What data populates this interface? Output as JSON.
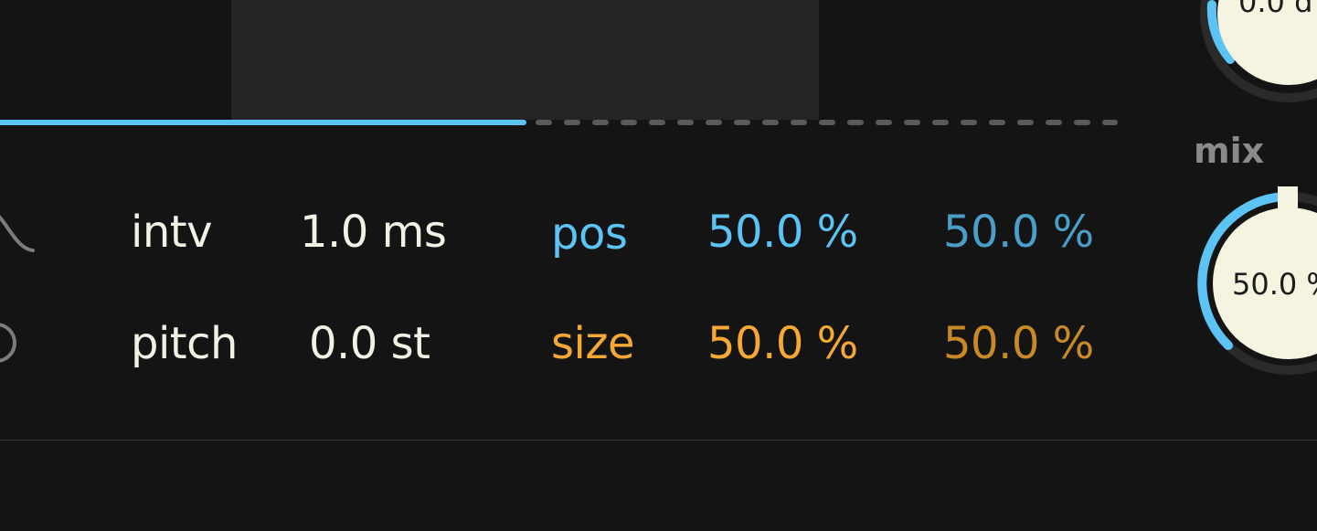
{
  "colors": {
    "background": "#141414",
    "display": "#252525",
    "progress_active": "#5bc4f5",
    "progress_inactive": "#5a5a5a",
    "text_primary": "#f2f2e4",
    "pos_accent": "#5bc4f5",
    "pos_secondary": "#4a9ec7",
    "size_accent": "#f5a833",
    "size_secondary": "#c98a26",
    "knob_face": "#f4f4e0",
    "knob_arc": "#5bc4f5",
    "mix_label": "#8a8a8a"
  },
  "progress": {
    "fraction": 0.47
  },
  "params": {
    "interval": {
      "icon": "decay-curve-icon",
      "label": "intv",
      "value": "1.0 ms"
    },
    "pitch": {
      "icon": "circle-icon",
      "label": "pitch",
      "value": "0.0 st"
    }
  },
  "mod": {
    "pos": {
      "label": "pos",
      "value_left": "50.0 %",
      "value_right": "50.0 %"
    },
    "size": {
      "label": "size",
      "value_left": "50.0 %",
      "value_right": "50.0 %"
    }
  },
  "knobs": {
    "top": {
      "value": "0.0 d"
    },
    "mix": {
      "label": "mix",
      "value": "50.0 %",
      "level": 0.5
    }
  }
}
